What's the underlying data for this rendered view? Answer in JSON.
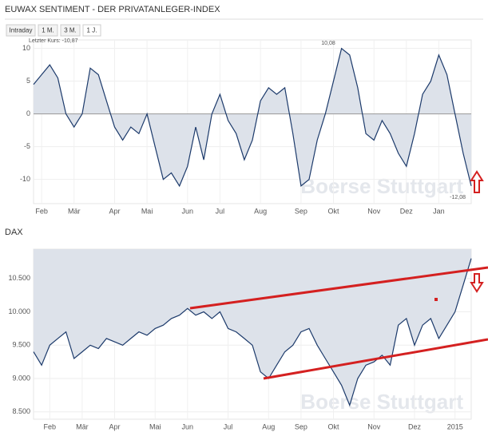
{
  "chart_data": [
    {
      "type": "area",
      "title": "EUWAX SENTIMENT - DER PRIVATANLEGER-INDEX",
      "tabs": [
        "Intraday",
        "1 M.",
        "3 M.",
        "1 J."
      ],
      "annotations": [
        "Letzter Kurs: -10,87",
        "10,08",
        "-12,08"
      ],
      "watermark": "Boerse Stuttgart",
      "categories": [
        null,
        "Feb",
        null,
        null,
        null,
        "Mär",
        null,
        null,
        null,
        null,
        "Apr",
        null,
        null,
        null,
        "Mai",
        null,
        null,
        null,
        null,
        "Jun",
        null,
        null,
        null,
        "Jul",
        null,
        null,
        null,
        null,
        "Aug",
        null,
        null,
        null,
        null,
        "Sep",
        null,
        null,
        null,
        "Okt",
        null,
        null,
        null,
        null,
        "Nov",
        null,
        null,
        null,
        "Dez",
        null,
        null,
        null,
        "Jan",
        null,
        null,
        null,
        null
      ],
      "values": [
        4.5,
        6,
        7.5,
        5.5,
        0,
        -2,
        0,
        7,
        6,
        2,
        -2,
        -4,
        -2,
        -3,
        0,
        -5,
        -10,
        -9,
        -11,
        -8,
        -2,
        -7,
        0,
        3,
        -1,
        -3,
        -7,
        -4,
        2,
        4,
        3,
        4,
        -3,
        -11,
        -10,
        -4,
        0,
        5,
        10,
        9,
        4,
        -3,
        -4,
        -1,
        -3,
        -6,
        -8,
        -3,
        3,
        5,
        9,
        6,
        0,
        -6,
        -11
      ],
      "color": "#1c3a6b",
      "fill_color": "#dde2ea",
      "fill": "zero",
      "ylim": [
        -13.7,
        11.3
      ],
      "yticks": [
        -10,
        -5,
        0,
        5,
        10
      ],
      "grid": true
    },
    {
      "type": "area",
      "title": "DAX",
      "watermark": "Boerse Stuttgart",
      "categories": [
        null,
        null,
        "Feb",
        null,
        null,
        null,
        "Mär",
        null,
        null,
        null,
        "Apr",
        null,
        null,
        null,
        null,
        "Mai",
        null,
        null,
        null,
        "Jun",
        null,
        null,
        null,
        null,
        "Jul",
        null,
        null,
        null,
        null,
        "Aug",
        null,
        null,
        null,
        "Sep",
        null,
        null,
        null,
        "Okt",
        null,
        null,
        null,
        null,
        "Nov",
        null,
        null,
        null,
        null,
        "Dez",
        null,
        null,
        null,
        null,
        "2015",
        null,
        null
      ],
      "values": [
        9400,
        9200,
        9500,
        9600,
        9700,
        9300,
        9400,
        9500,
        9450,
        9600,
        9550,
        9500,
        9600,
        9700,
        9650,
        9750,
        9800,
        9900,
        9950,
        10050,
        9950,
        10000,
        9900,
        10000,
        9750,
        9700,
        9600,
        9500,
        9100,
        9000,
        9200,
        9400,
        9500,
        9700,
        9750,
        9500,
        9300,
        9100,
        8900,
        8600,
        9000,
        9200,
        9250,
        9350,
        9200,
        9800,
        9900,
        9500,
        9800,
        9900,
        9600,
        9800,
        10000,
        10400,
        10800
      ],
      "color": "#1c3a6b",
      "fill_color": "#dde2ea",
      "fill": "above",
      "ylim": [
        8390,
        10940
      ],
      "yticks": [
        {
          "value": 8500,
          "label": "8.500"
        },
        {
          "value": 9000,
          "label": "9.000"
        },
        {
          "value": 9500,
          "label": "9.500"
        },
        {
          "value": 10000,
          "label": "10.000"
        },
        {
          "value": 10500,
          "label": "10.500"
        }
      ],
      "grid": true
    }
  ]
}
